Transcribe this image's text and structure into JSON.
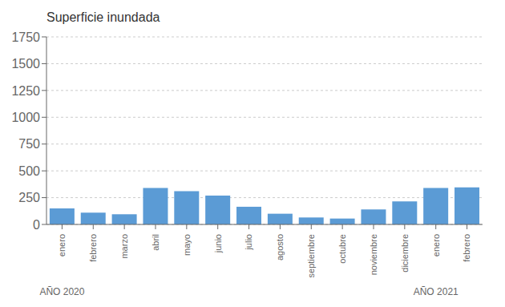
{
  "chart_data": {
    "type": "bar",
    "title": "Superficie inundada",
    "categories": [
      "enero",
      "febrero",
      "marzo",
      "abril",
      "mayo",
      "junio",
      "julio",
      "agosto",
      "septiembre",
      "octubre",
      "noviembre",
      "diciembre",
      "enero",
      "febrero"
    ],
    "values": [
      150,
      110,
      95,
      340,
      310,
      270,
      165,
      100,
      65,
      55,
      140,
      215,
      340,
      345
    ],
    "color": "#5B9BD5",
    "ylim": [
      0,
      1750
    ],
    "yticks": [
      0,
      250,
      500,
      750,
      1000,
      1250,
      1500,
      1750
    ],
    "grid": true,
    "annotations": [
      {
        "text": "AÑO 2020",
        "index": 0
      },
      {
        "text": "AÑO 2021",
        "index": 12
      }
    ]
  }
}
